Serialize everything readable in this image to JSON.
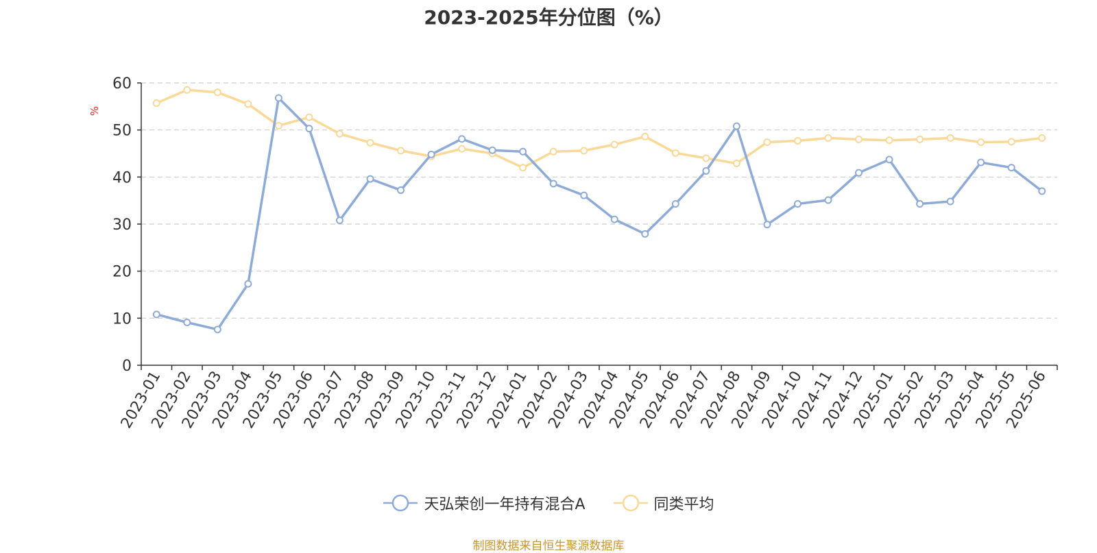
{
  "chart_data": {
    "type": "line",
    "title": "2023-2025年分位图（%）",
    "ylabel": "%",
    "xlabel": "",
    "ylim": [
      0,
      60
    ],
    "yticks": [
      0,
      10,
      20,
      30,
      40,
      50,
      60
    ],
    "grid": true,
    "legend_position": "bottom-center",
    "categories": [
      "2023-01",
      "2023-02",
      "2023-03",
      "2023-04",
      "2023-05",
      "2023-06",
      "2023-07",
      "2023-08",
      "2023-09",
      "2023-10",
      "2023-11",
      "2023-12",
      "2024-01",
      "2024-02",
      "2024-03",
      "2024-04",
      "2024-05",
      "2024-06",
      "2024-07",
      "2024-08",
      "2024-09",
      "2024-10",
      "2024-11",
      "2024-12",
      "2025-01",
      "2025-02",
      "2025-03",
      "2025-04",
      "2025-05",
      "2025-06"
    ],
    "series": [
      {
        "name": "天弘荣创一年持有混合A",
        "color": "#8eabd7",
        "values": [
          10.8,
          9.1,
          7.6,
          17.3,
          56.8,
          50.3,
          30.8,
          39.6,
          37.2,
          44.8,
          48.1,
          45.7,
          45.4,
          38.6,
          36.1,
          31.0,
          27.9,
          34.3,
          41.3,
          50.8,
          29.9,
          34.3,
          35.1,
          40.9,
          43.7,
          34.3,
          34.8,
          43.1,
          42.0,
          37.0
        ]
      },
      {
        "name": "同类平均",
        "color": "#fad898",
        "values": [
          55.7,
          58.5,
          58.0,
          55.5,
          50.9,
          52.7,
          49.2,
          47.3,
          45.6,
          44.4,
          46.0,
          45.0,
          42.0,
          45.4,
          45.6,
          46.9,
          48.6,
          45.1,
          44.0,
          42.9,
          47.4,
          47.7,
          48.3,
          48.0,
          47.8,
          48.0,
          48.3,
          47.4,
          47.5,
          48.3
        ]
      }
    ]
  },
  "footer": {
    "source": "制图数据来自恒生聚源数据库"
  }
}
